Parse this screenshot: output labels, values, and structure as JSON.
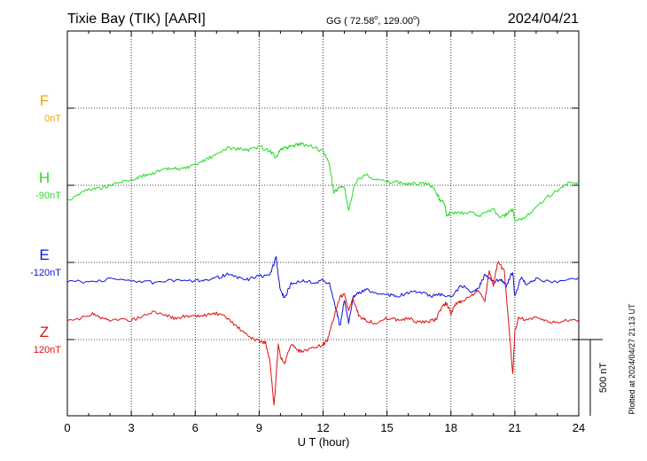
{
  "header": {
    "station": "Tixie Bay (TIK)  [AARI]",
    "coords_prefix": "GG ( 72.58",
    "coords_mid": ", 129.00",
    "coords_suffix": ")",
    "degree": "o",
    "date": "2024/04/21"
  },
  "footer": {
    "plotted": "Plotted at 2024/04/27 21:13 UT"
  },
  "chart_data": {
    "type": "line",
    "xlabel": "U T (hour)",
    "xlim": [
      0,
      24
    ],
    "xticks": [
      0,
      3,
      6,
      9,
      12,
      15,
      18,
      21,
      24
    ],
    "xtick_labels": [
      "0",
      "3",
      "6",
      "9",
      "12",
      "15",
      "18",
      "21",
      "24"
    ],
    "scale_bar": {
      "label": "500 nT",
      "value_nT": 500
    },
    "series": [
      {
        "name": "F",
        "baseline_label": "0nT",
        "baseline_nT": 0,
        "color": "#f5a400",
        "x": [],
        "y": []
      },
      {
        "name": "H",
        "baseline_label": "-90nT",
        "baseline_nT": -90,
        "color": "#22dd22",
        "x": [
          0,
          0.5,
          1,
          1.5,
          2,
          2.5,
          3,
          3.5,
          4,
          4.5,
          5,
          5.5,
          6,
          6.5,
          7,
          7.5,
          8,
          8.5,
          9,
          9.5,
          9.8,
          10,
          10.3,
          10.5,
          10.8,
          11,
          11.5,
          12,
          12.3,
          12.5,
          12.7,
          13,
          13.2,
          13.5,
          14,
          14.5,
          15,
          15.5,
          16,
          16.5,
          17,
          17.3,
          17.5,
          17.7,
          17.8,
          18,
          18.5,
          19,
          19.3,
          19.6,
          20,
          20.3,
          20.6,
          20.9,
          21,
          21.5,
          22,
          22.5,
          23,
          23.5,
          24
        ],
        "y": [
          -100,
          -60,
          -25,
          -20,
          0,
          20,
          35,
          60,
          80,
          100,
          110,
          110,
          130,
          170,
          200,
          245,
          240,
          230,
          255,
          225,
          185,
          235,
          245,
          255,
          265,
          270,
          255,
          220,
          140,
          -50,
          -20,
          -10,
          -170,
          20,
          70,
          40,
          20,
          20,
          10,
          10,
          5,
          -40,
          -100,
          -110,
          -200,
          -180,
          -185,
          -175,
          -210,
          -170,
          -160,
          -215,
          -190,
          -160,
          -240,
          -210,
          -140,
          -80,
          -30,
          10,
          10
        ]
      },
      {
        "name": "E",
        "baseline_label": "-120nT",
        "baseline_nT": -120,
        "color": "#1010dd",
        "x": [
          0,
          1,
          2,
          3,
          4,
          5,
          6,
          6.5,
          7,
          7.5,
          8,
          8.5,
          9,
          9.5,
          9.8,
          10,
          10.2,
          10.5,
          11,
          11.5,
          12,
          12.3,
          12.6,
          12.8,
          13,
          13.2,
          13.4,
          13.7,
          14,
          14.5,
          15,
          15.5,
          16,
          16.5,
          17,
          17.5,
          18,
          18.5,
          19,
          19.3,
          19.6,
          20,
          20.3,
          20.6,
          20.9,
          21,
          21.3,
          21.5,
          22,
          23,
          24
        ],
        "y": [
          -120,
          -130,
          -110,
          -120,
          -130,
          -120,
          -125,
          -110,
          -100,
          -80,
          -100,
          -110,
          -90,
          -80,
          30,
          -190,
          -230,
          -140,
          -120,
          -130,
          -120,
          -140,
          -300,
          -420,
          -250,
          -390,
          -230,
          -200,
          -180,
          -200,
          -210,
          -220,
          -200,
          -190,
          -220,
          -210,
          -230,
          -150,
          -200,
          -170,
          -80,
          -130,
          -110,
          -150,
          -60,
          -230,
          -90,
          -140,
          -110,
          -130,
          -100
        ]
      },
      {
        "name": "Z",
        "baseline_label": "120nT",
        "baseline_nT": 120,
        "color": "#e01010",
        "x": [
          0,
          0.5,
          1,
          1.3,
          1.6,
          2,
          3,
          3.5,
          4,
          4.5,
          5,
          5.5,
          6,
          6.5,
          7,
          7.5,
          8,
          8.5,
          9,
          9.3,
          9.5,
          9.7,
          9.9,
          10,
          10.2,
          10.5,
          10.8,
          11,
          11.5,
          12,
          12.2,
          12.5,
          12.8,
          13,
          13.2,
          13.4,
          13.7,
          14,
          14.5,
          15,
          15.5,
          16,
          16.5,
          17,
          17.3,
          17.6,
          17.8,
          18,
          18.2,
          18.5,
          19,
          19.3,
          19.6,
          19.8,
          20,
          20.2,
          20.5,
          20.8,
          20.9,
          21,
          21.2,
          21.5,
          22,
          22.5,
          23,
          23.5,
          24
        ],
        "y": [
          120,
          130,
          160,
          170,
          140,
          130,
          130,
          150,
          180,
          170,
          140,
          150,
          150,
          160,
          170,
          140,
          80,
          20,
          -10,
          -20,
          -140,
          -440,
          -40,
          -110,
          -160,
          -30,
          -70,
          -80,
          -60,
          -30,
          -10,
          140,
          280,
          300,
          190,
          270,
          150,
          130,
          100,
          140,
          130,
          140,
          110,
          120,
          130,
          220,
          240,
          170,
          230,
          250,
          290,
          320,
          260,
          450,
          350,
          510,
          450,
          -50,
          -230,
          60,
          150,
          130,
          140,
          120,
          110,
          130,
          130
        ]
      }
    ]
  }
}
